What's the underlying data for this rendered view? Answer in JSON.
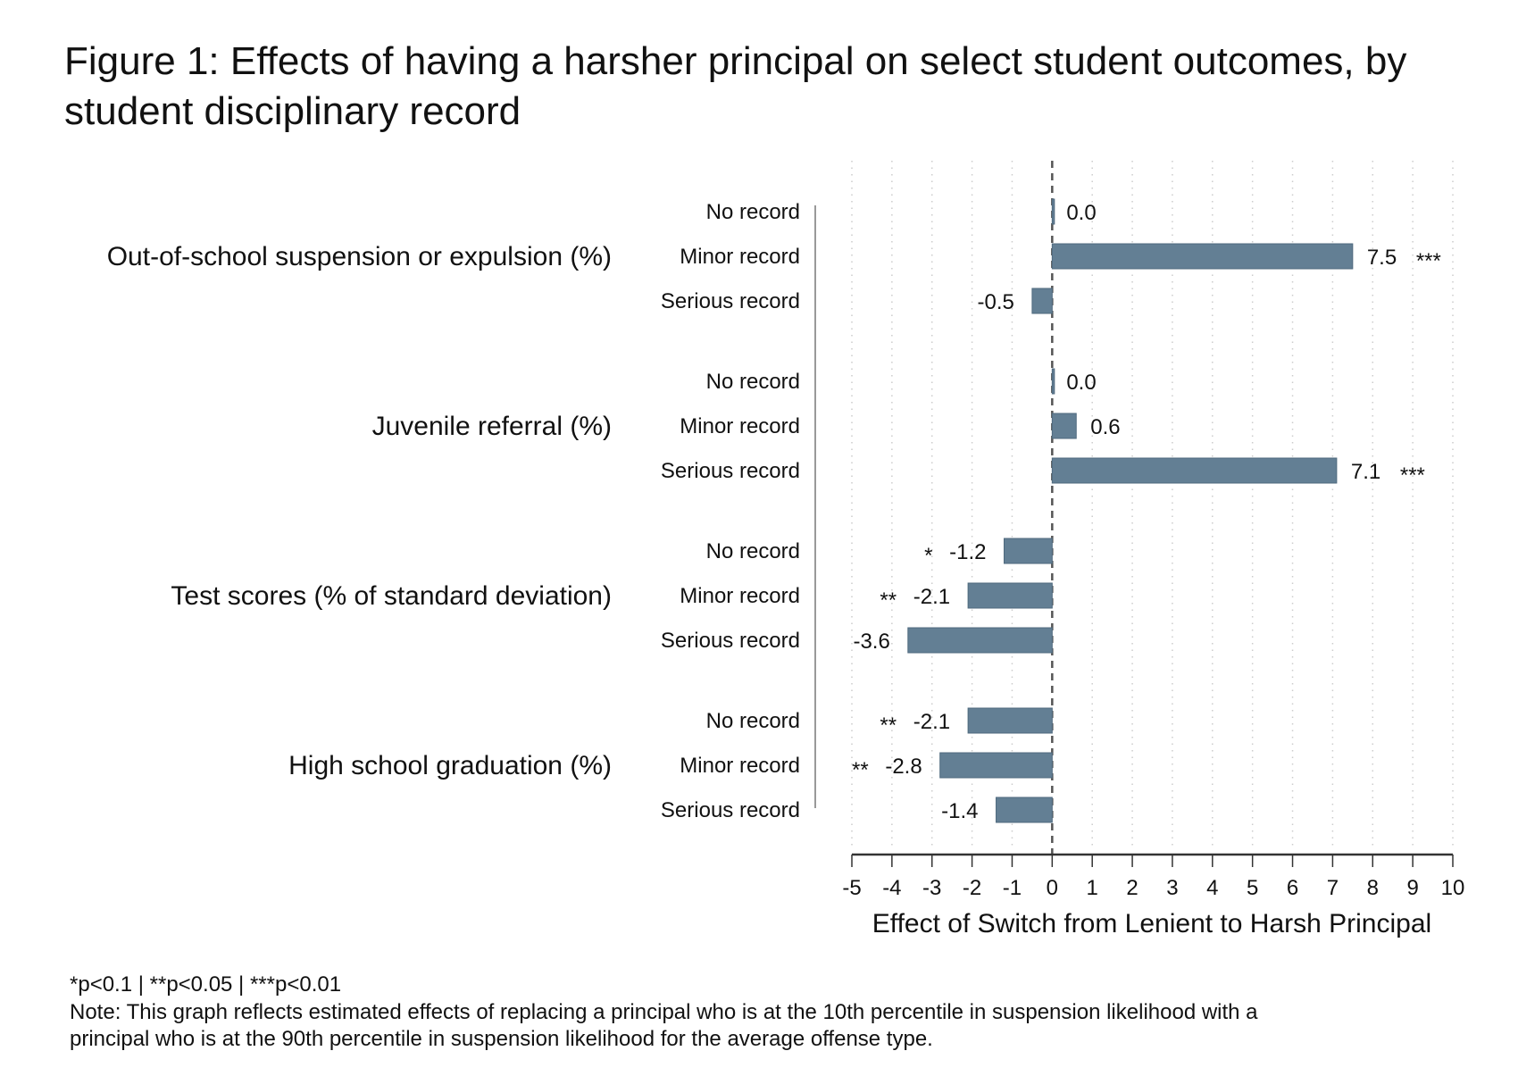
{
  "chart_data": {
    "type": "bar",
    "orientation": "horizontal",
    "title": "Figure 1: Effects of having a harsher principal on select student outcomes, by student disciplinary record",
    "title_lines": [
      "Figure 1: Effects of having a harsher principal on select student outcomes, by",
      "student disciplinary record"
    ],
    "xlabel": "Effect of Switch from Lenient to Harsh Principal",
    "xlim": [
      -5,
      10
    ],
    "xticks": [
      -5,
      -4,
      -3,
      -2,
      -1,
      0,
      1,
      2,
      3,
      4,
      5,
      6,
      7,
      8,
      9,
      10
    ],
    "grid": "dotted vertical",
    "bar_color": "#637f94",
    "groups": [
      {
        "label": "Out-of-school suspension or expulsion (%)",
        "bars": [
          {
            "label": "No record",
            "value": 0.0,
            "value_label": "0.0",
            "stars": ""
          },
          {
            "label": "Minor record",
            "value": 7.5,
            "value_label": "7.5",
            "stars": "***"
          },
          {
            "label": "Serious record",
            "value": -0.5,
            "value_label": "-0.5",
            "stars": ""
          }
        ]
      },
      {
        "label": "Juvenile referral (%)",
        "bars": [
          {
            "label": "No record",
            "value": 0.0,
            "value_label": "0.0",
            "stars": ""
          },
          {
            "label": "Minor record",
            "value": 0.6,
            "value_label": "0.6",
            "stars": ""
          },
          {
            "label": "Serious record",
            "value": 7.1,
            "value_label": "7.1",
            "stars": "***"
          }
        ]
      },
      {
        "label": "Test scores (% of standard deviation)",
        "bars": [
          {
            "label": "No record",
            "value": -1.2,
            "value_label": "-1.2",
            "stars": "*"
          },
          {
            "label": "Minor record",
            "value": -2.1,
            "value_label": "-2.1",
            "stars": "**"
          },
          {
            "label": "Serious record",
            "value": -3.6,
            "value_label": "-3.6",
            "stars": ""
          }
        ]
      },
      {
        "label": "High school graduation (%)",
        "bars": [
          {
            "label": "No record",
            "value": -2.1,
            "value_label": "-2.1",
            "stars": "**"
          },
          {
            "label": "Minor record",
            "value": -2.8,
            "value_label": "-2.8",
            "stars": "**"
          },
          {
            "label": "Serious record",
            "value": -1.4,
            "value_label": "-1.4",
            "stars": ""
          }
        ]
      }
    ]
  },
  "footnotes": {
    "significance": "*p<0.1 | **p<0.05 | ***p<0.01",
    "note_line1": "Note: This graph reflects estimated effects of replacing a principal who is at the 10th percentile in suspension likelihood with a",
    "note_line2": "principal who is at the 90th percentile in suspension likelihood for the average offense type."
  }
}
